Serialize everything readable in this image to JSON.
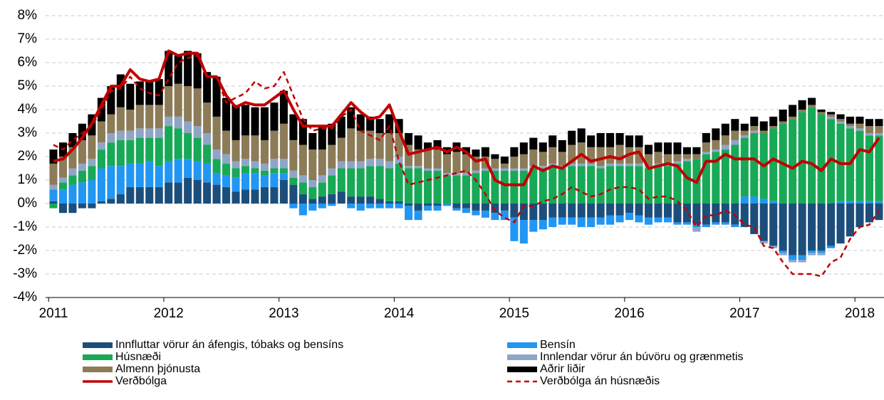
{
  "chart_data": {
    "type": "bar",
    "categories": [
      "2011",
      null,
      null,
      null,
      null,
      null,
      null,
      null,
      null,
      null,
      null,
      null,
      "2012",
      null,
      null,
      null,
      null,
      null,
      null,
      null,
      null,
      null,
      null,
      null,
      "2013",
      null,
      null,
      null,
      null,
      null,
      null,
      null,
      null,
      null,
      null,
      null,
      "2014",
      null,
      null,
      null,
      null,
      null,
      null,
      null,
      null,
      null,
      null,
      null,
      "2015",
      null,
      null,
      null,
      null,
      null,
      null,
      null,
      null,
      null,
      null,
      null,
      "2016",
      null,
      null,
      null,
      null,
      null,
      null,
      null,
      null,
      null,
      null,
      null,
      "2017",
      null,
      null,
      null,
      null,
      null,
      null,
      null,
      null,
      null,
      null,
      null,
      "2018",
      null,
      null
    ],
    "ylim": [
      -4,
      8
    ],
    "yticks": [
      {
        "value": -4,
        "label": "-4%"
      },
      {
        "value": -3,
        "label": "-3%"
      },
      {
        "value": -2,
        "label": "-2%"
      },
      {
        "value": -1,
        "label": "-1%"
      },
      {
        "value": 0,
        "label": "0%"
      },
      {
        "value": 1,
        "label": "1%"
      },
      {
        "value": 2,
        "label": "2%"
      },
      {
        "value": 3,
        "label": "3%"
      },
      {
        "value": 4,
        "label": "4%"
      },
      {
        "value": 5,
        "label": "5%"
      },
      {
        "value": 6,
        "label": "6%"
      },
      {
        "value": 7,
        "label": "7%"
      },
      {
        "value": 8,
        "label": "8%"
      }
    ],
    "grid": true,
    "legend": "bottom",
    "series": [
      {
        "name": "Innfluttar vörur án áfengis, tóbaks og bensíns",
        "type": "bar",
        "color": "#1c4e7c",
        "values": [
          0.1,
          -0.4,
          -0.4,
          -0.2,
          -0.2,
          0.1,
          0.2,
          0.4,
          0.7,
          0.7,
          0.7,
          0.7,
          0.9,
          0.9,
          1.1,
          1.0,
          0.9,
          0.8,
          0.7,
          0.5,
          0.6,
          0.6,
          0.7,
          0.7,
          1.0,
          0.8,
          0.4,
          0.2,
          0.3,
          0.4,
          0.5,
          0.3,
          0.3,
          0.3,
          0.2,
          0.1,
          0.1,
          -0.1,
          -0.3,
          -0.1,
          -0.1,
          0,
          -0.2,
          -0.2,
          -0.3,
          -0.3,
          -0.4,
          -0.3,
          -0.6,
          -0.7,
          -0.7,
          -0.7,
          -0.6,
          -0.6,
          -0.6,
          -0.6,
          -0.6,
          -0.6,
          -0.5,
          -0.5,
          -0.4,
          -0.5,
          -0.6,
          -0.6,
          -0.6,
          -0.8,
          -0.8,
          -0.9,
          -0.9,
          -0.8,
          -0.8,
          -0.9,
          -1.0,
          -1.3,
          -1.6,
          -1.8,
          -2.0,
          -2.2,
          -2.2,
          -2.0,
          -2.0,
          -1.8,
          -1.7,
          -1.4,
          -1.0,
          -0.8,
          -0.7
        ]
      },
      {
        "name": "Bensín",
        "type": "bar",
        "color": "#2196f3",
        "values": [
          0.5,
          0.6,
          0.8,
          0.9,
          1.0,
          1.4,
          1.4,
          1.2,
          1.0,
          1.0,
          1.1,
          0.9,
          0.9,
          1.0,
          0.8,
          0.8,
          0.8,
          0.5,
          0.5,
          0.6,
          0.7,
          0.7,
          0.5,
          0.6,
          0.3,
          -0.2,
          -0.5,
          -0.3,
          -0.2,
          -0.1,
          0,
          -0.2,
          -0.3,
          -0.2,
          -0.2,
          -0.2,
          -0.2,
          -0.6,
          -0.4,
          -0.2,
          -0.2,
          -0.1,
          -0.1,
          -0.2,
          -0.2,
          -0.3,
          -0.3,
          -0.4,
          -1.0,
          -1.0,
          -0.5,
          -0.4,
          -0.4,
          -0.3,
          -0.3,
          -0.4,
          -0.4,
          -0.3,
          -0.4,
          -0.3,
          -0.3,
          -0.3,
          -0.3,
          -0.2,
          -0.2,
          -0.1,
          -0.1,
          -0.1,
          -0.1,
          -0.1,
          -0.1,
          -0.1,
          0.3,
          0.3,
          0.2,
          0.1,
          -0.1,
          -0.2,
          -0.2,
          -0.1,
          -0.1,
          -0.1,
          0.1,
          0.1,
          0.1,
          0.1,
          0.1
        ]
      },
      {
        "name": "Húsnæði",
        "type": "bar",
        "color": "#17a956",
        "values": [
          -0.2,
          0.3,
          0.4,
          0.5,
          0.6,
          0.8,
          1.0,
          1.1,
          1.0,
          1.1,
          1.0,
          1.2,
          1.5,
          1.3,
          1.1,
          1.0,
          0.8,
          0.6,
          0.5,
          0.4,
          0.3,
          0.2,
          0.2,
          0.2,
          0.2,
          0.3,
          0.5,
          0.5,
          0.6,
          0.8,
          1.0,
          1.2,
          1.2,
          1.3,
          1.4,
          1.4,
          1.6,
          1.5,
          1.5,
          1.4,
          1.4,
          1.2,
          1.2,
          1.2,
          1.3,
          1.4,
          1.4,
          1.4,
          1.4,
          1.4,
          1.5,
          1.5,
          1.6,
          1.5,
          1.6,
          1.6,
          1.6,
          1.5,
          1.6,
          1.6,
          1.6,
          1.6,
          1.5,
          1.6,
          1.6,
          1.7,
          1.8,
          1.9,
          2.1,
          2.2,
          2.3,
          2.5,
          2.5,
          2.7,
          2.8,
          3.1,
          3.4,
          3.6,
          3.9,
          4.1,
          3.8,
          3.6,
          3.3,
          3.1,
          3.0,
          2.8,
          2.8
        ]
      },
      {
        "name": "Innlendar vörur án búvöru og grænmetis",
        "type": "bar",
        "color": "#8fa5c6",
        "values": [
          0.2,
          0.2,
          0.3,
          0.3,
          0.3,
          0.3,
          0.4,
          0.4,
          0.4,
          0.4,
          0.4,
          0.4,
          0.4,
          0.5,
          0.5,
          0.5,
          0.5,
          0.4,
          0.4,
          0.3,
          0.3,
          0.3,
          0.3,
          0.4,
          0.4,
          0.3,
          0.3,
          0.3,
          0.3,
          0.3,
          0.3,
          0.3,
          0.3,
          0.3,
          0.3,
          0.3,
          0.3,
          0.1,
          0.1,
          0.1,
          0.1,
          0.1,
          0.1,
          0.1,
          0.1,
          0.1,
          0.1,
          0.1,
          0.1,
          0.1,
          0.1,
          0.1,
          0.1,
          0.1,
          0.1,
          0.1,
          0.1,
          0.1,
          0.1,
          0.1,
          0.1,
          0.1,
          0.1,
          0.1,
          0.1,
          0.1,
          0.1,
          -0.2,
          0.1,
          0.1,
          0.2,
          0.2,
          0.1,
          0.1,
          -0.1,
          -0.1,
          -0.1,
          -0.1,
          -0.1,
          -0.1,
          -0.1,
          0.1,
          0.1,
          0.1,
          0.1,
          0.1,
          0.1
        ]
      },
      {
        "name": "Almenn þjónusta",
        "type": "bar",
        "color": "#8c7b57",
        "values": [
          0.9,
          0.9,
          0.9,
          1.0,
          1.0,
          0.9,
          0.8,
          1.0,
          0.9,
          1.0,
          1.0,
          1.0,
          1.3,
          1.4,
          1.5,
          1.6,
          1.3,
          1.4,
          1.0,
          0.9,
          1.0,
          1.1,
          1.0,
          1.2,
          1.5,
          1.3,
          1.3,
          1.3,
          1.1,
          1.0,
          1.0,
          1.4,
          1.3,
          1.2,
          1.1,
          1.2,
          1.0,
          0.9,
          0.7,
          0.8,
          0.8,
          0.8,
          0.9,
          0.8,
          0.6,
          0.5,
          0.4,
          0.2,
          0.5,
          0.6,
          0.7,
          0.6,
          0.7,
          0.6,
          0.8,
          0.9,
          0.7,
          0.8,
          0.7,
          0.8,
          0.7,
          0.7,
          0.5,
          0.5,
          0.4,
          0.3,
          0.2,
          0.2,
          0.4,
          0.4,
          0.4,
          0.4,
          0.2,
          0.2,
          0.1,
          0.1,
          0.1,
          0.1,
          0.1,
          0.1,
          0.1,
          0.1,
          0.1,
          0.1,
          0.2,
          0.3,
          0.3
        ]
      },
      {
        "name": "Aðrir liðir",
        "type": "bar",
        "color": "#000000",
        "values": [
          0.6,
          0.6,
          0.6,
          0.7,
          0.9,
          1.0,
          1.2,
          1.4,
          1.1,
          1.0,
          1.0,
          1.1,
          1.5,
          1.2,
          1.5,
          1.5,
          1.3,
          1.7,
          1.4,
          1.5,
          1.3,
          1.2,
          1.4,
          1.2,
          1.4,
          1.1,
          1.1,
          0.7,
          1.0,
          0.9,
          0.9,
          0.9,
          0.7,
          0.6,
          0.6,
          0.8,
          0.6,
          0.5,
          0.6,
          0.3,
          0.4,
          0.3,
          0.4,
          0.3,
          0.3,
          0.4,
          0.2,
          0.3,
          0.4,
          0.5,
          0.5,
          0.4,
          0.5,
          0.5,
          0.6,
          0.6,
          0.5,
          0.6,
          0.6,
          0.5,
          0.5,
          0.5,
          0.4,
          0.4,
          0.5,
          0.5,
          0.3,
          0.3,
          0.4,
          0.5,
          0.5,
          0.5,
          0.3,
          0.4,
          0.4,
          0.4,
          0.5,
          0.5,
          0.4,
          0.3,
          0.1,
          0.1,
          0.2,
          0.3,
          0.3,
          0.3,
          0.3
        ]
      },
      {
        "name": "Verðbólga",
        "type": "line",
        "style": "solid",
        "color": "#c00000",
        "values": [
          1.8,
          1.9,
          2.3,
          2.8,
          3.4,
          4.2,
          5.0,
          5.0,
          5.7,
          5.3,
          5.2,
          5.3,
          6.5,
          6.3,
          6.4,
          6.4,
          5.4,
          5.4,
          4.6,
          4.1,
          4.3,
          4.2,
          4.2,
          4.5,
          4.8,
          4.0,
          3.3,
          3.3,
          3.3,
          3.3,
          3.8,
          4.3,
          3.9,
          3.6,
          3.7,
          4.2,
          3.1,
          2.1,
          2.2,
          2.3,
          2.4,
          2.2,
          2.4,
          2.2,
          1.8,
          1.9,
          1.0,
          0.8,
          0.8,
          0.8,
          1.6,
          1.4,
          1.6,
          1.5,
          1.8,
          2.1,
          1.8,
          1.9,
          2.0,
          1.9,
          2.1,
          2.2,
          1.5,
          1.6,
          1.7,
          1.6,
          1.1,
          0.9,
          1.8,
          1.8,
          2.1,
          1.9,
          1.9,
          1.9,
          1.6,
          1.9,
          1.7,
          1.5,
          1.8,
          1.7,
          1.4,
          1.9,
          1.7,
          1.7,
          2.3,
          2.2,
          2.8
        ]
      },
      {
        "name": "Verðbólga án húsnæðis",
        "type": "line",
        "style": "dashed",
        "color": "#c00000",
        "values": [
          2.5,
          2.3,
          2.7,
          3.0,
          3.3,
          4.0,
          4.8,
          4.9,
          5.4,
          4.9,
          4.7,
          4.6,
          5.3,
          6.0,
          6.2,
          6.3,
          5.4,
          5.4,
          4.3,
          4.5,
          4.7,
          5.2,
          4.9,
          5.0,
          5.6,
          4.6,
          3.6,
          3.1,
          3.2,
          3.2,
          3.7,
          4.0,
          3.1,
          2.9,
          2.7,
          3.3,
          1.8,
          0.8,
          0.9,
          1.0,
          1.1,
          1.2,
          1.3,
          1.4,
          1.0,
          0.4,
          -0.3,
          -0.6,
          -0.8,
          -0.1,
          -0.1,
          0.1,
          0.2,
          0.4,
          0.7,
          0.5,
          0.3,
          0.4,
          0.6,
          0.7,
          0.7,
          0.6,
          0.2,
          0.3,
          0.3,
          0.1,
          -0.3,
          -1.0,
          -0.5,
          -0.5,
          -0.3,
          -0.5,
          -0.9,
          -1.0,
          -1.8,
          -1.9,
          -2.5,
          -3.0,
          -3.0,
          -3.0,
          -3.1,
          -2.5,
          -2.3,
          -1.5,
          -1.0,
          -0.9,
          -0.3
        ]
      }
    ]
  }
}
